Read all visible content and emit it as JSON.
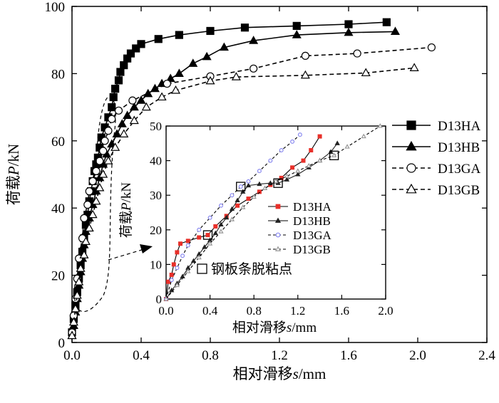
{
  "chart_data": [
    {
      "type": "line",
      "xlabel_prefix": "相对滑移",
      "xlabel_var": "s",
      "xlabel_unit": "/mm",
      "ylabel_prefix": "荷载",
      "ylabel_var": "P",
      "ylabel_unit": "/kN",
      "xlim": [
        0,
        2.4
      ],
      "ylim": [
        0,
        100
      ],
      "xticks": [
        "0.0",
        "0.4",
        "0.8",
        "1.2",
        "1.6",
        "2.0",
        "2.4"
      ],
      "yticks": [
        "0",
        "20",
        "40",
        "60",
        "80",
        "100"
      ],
      "legend_position": "right",
      "series": [
        {
          "name": "D13HA",
          "marker": "square-filled",
          "line": "solid",
          "points": [
            [
              0,
              3
            ],
            [
              0.01,
              7
            ],
            [
              0.02,
              11
            ],
            [
              0.03,
              15
            ],
            [
              0.04,
              19
            ],
            [
              0.05,
              23
            ],
            [
              0.06,
              27
            ],
            [
              0.07,
              31
            ],
            [
              0.08,
              35
            ],
            [
              0.09,
              38
            ],
            [
              0.1,
              42
            ],
            [
              0.11,
              45
            ],
            [
              0.12,
              48
            ],
            [
              0.13,
              51
            ],
            [
              0.14,
              53
            ],
            [
              0.15,
              55
            ],
            [
              0.16,
              58
            ],
            [
              0.17,
              61
            ],
            [
              0.19,
              64
            ],
            [
              0.21,
              67
            ],
            [
              0.23,
              70
            ],
            [
              0.24,
              73
            ],
            [
              0.25,
              75.5
            ],
            [
              0.27,
              78
            ],
            [
              0.28,
              80.5
            ],
            [
              0.3,
              82.5
            ],
            [
              0.32,
              84.5
            ],
            [
              0.34,
              86
            ],
            [
              0.37,
              87.5
            ],
            [
              0.4,
              88.8
            ],
            [
              0.5,
              90.3
            ],
            [
              0.62,
              91.5
            ],
            [
              0.8,
              92.7
            ],
            [
              1.0,
              93.7
            ],
            [
              1.3,
              94.2
            ],
            [
              1.6,
              94.7
            ],
            [
              1.82,
              95.3
            ]
          ]
        },
        {
          "name": "D13HB",
          "marker": "triangle-filled",
          "line": "solid",
          "points": [
            [
              0,
              2
            ],
            [
              0.01,
              5
            ],
            [
              0.02,
              9
            ],
            [
              0.03,
              13
            ],
            [
              0.04,
              17
            ],
            [
              0.05,
              21
            ],
            [
              0.06,
              25
            ],
            [
              0.07,
              29
            ],
            [
              0.08,
              33
            ],
            [
              0.1,
              37
            ],
            [
              0.12,
              41
            ],
            [
              0.14,
              45
            ],
            [
              0.16,
              49
            ],
            [
              0.18,
              53
            ],
            [
              0.2,
              56
            ],
            [
              0.23,
              59
            ],
            [
              0.26,
              62
            ],
            [
              0.29,
              65
            ],
            [
              0.32,
              67.5
            ],
            [
              0.36,
              70
            ],
            [
              0.4,
              72
            ],
            [
              0.44,
              74
            ],
            [
              0.48,
              75.5
            ],
            [
              0.52,
              77
            ],
            [
              0.57,
              78.5
            ],
            [
              0.62,
              80
            ],
            [
              0.7,
              83
            ],
            [
              0.78,
              85
            ],
            [
              0.88,
              87.8
            ],
            [
              1.05,
              89.8
            ],
            [
              1.3,
              91.5
            ],
            [
              1.6,
              92.2
            ],
            [
              1.87,
              92.5
            ]
          ]
        },
        {
          "name": "D13GA",
          "marker": "circle-open",
          "line": "dashed",
          "points": [
            [
              0,
              3
            ],
            [
              0.01,
              8
            ],
            [
              0.02,
              13
            ],
            [
              0.03,
              19
            ],
            [
              0.04,
              25
            ],
            [
              0.06,
              31
            ],
            [
              0.07,
              37
            ],
            [
              0.09,
              41
            ],
            [
              0.1,
              45
            ],
            [
              0.12,
              48
            ],
            [
              0.14,
              51
            ],
            [
              0.16,
              54
            ],
            [
              0.18,
              57
            ],
            [
              0.19,
              60
            ],
            [
              0.21,
              63
            ],
            [
              0.23,
              66.5
            ],
            [
              0.27,
              69
            ],
            [
              0.35,
              72
            ],
            [
              0.55,
              77
            ],
            [
              0.8,
              79.2
            ],
            [
              1.05,
              81.5
            ],
            [
              1.35,
              85.3
            ],
            [
              1.65,
              86
            ],
            [
              2.08,
              87.8
            ]
          ]
        },
        {
          "name": "D13GB",
          "marker": "triangle-open",
          "line": "dashed",
          "points": [
            [
              0,
              2
            ],
            [
              0.01,
              6
            ],
            [
              0.02,
              10
            ],
            [
              0.03,
              14
            ],
            [
              0.04,
              18
            ],
            [
              0.05,
              22
            ],
            [
              0.07,
              26
            ],
            [
              0.08,
              30
            ],
            [
              0.1,
              34
            ],
            [
              0.12,
              38
            ],
            [
              0.14,
              42
            ],
            [
              0.16,
              46
            ],
            [
              0.18,
              50
            ],
            [
              0.21,
              54
            ],
            [
              0.25,
              58
            ],
            [
              0.3,
              62
            ],
            [
              0.36,
              66
            ],
            [
              0.43,
              70
            ],
            [
              0.52,
              73
            ],
            [
              0.6,
              75
            ],
            [
              0.8,
              77.8
            ],
            [
              0.95,
              79
            ],
            [
              1.35,
              79.5
            ],
            [
              1.7,
              80.2
            ],
            [
              1.98,
              81.7
            ]
          ]
        }
      ]
    },
    {
      "type": "line",
      "inset": true,
      "xlabel_prefix": "相对滑移",
      "xlabel_var": "s",
      "xlabel_unit": "/mm",
      "ylabel_prefix": "荷载",
      "ylabel_var": "P",
      "ylabel_unit": "/kN",
      "xlim": [
        0,
        2.0
      ],
      "ylim": [
        0,
        50
      ],
      "xticks": [
        "0.0",
        "0.4",
        "0.8",
        "1.2",
        "1.6",
        "2.0"
      ],
      "yticks": [
        "0",
        "10",
        "20",
        "30",
        "40",
        "50"
      ],
      "annotation_label": "钢板条脱粘点",
      "legend_position": "center-right",
      "debond_points": [
        [
          0.38,
          18.5
        ],
        [
          0.68,
          32.5
        ],
        [
          1.02,
          33.5
        ],
        [
          1.53,
          41.5
        ]
      ],
      "series": [
        {
          "name": "D13HA",
          "color": "#e8302a",
          "marker": "square-small",
          "line": "solid",
          "points": [
            [
              0,
              0
            ],
            [
              0.02,
              5
            ],
            [
              0.05,
              7
            ],
            [
              0.07,
              10
            ],
            [
              0.1,
              13.5
            ],
            [
              0.13,
              16
            ],
            [
              0.2,
              16.8
            ],
            [
              0.3,
              17.8
            ],
            [
              0.38,
              18.5
            ],
            [
              0.45,
              21
            ],
            [
              0.55,
              24
            ],
            [
              0.65,
              27
            ],
            [
              0.75,
              29
            ],
            [
              0.85,
              31
            ],
            [
              0.95,
              33
            ],
            [
              1.05,
              35
            ],
            [
              1.15,
              38
            ],
            [
              1.25,
              40
            ],
            [
              1.32,
              43
            ],
            [
              1.4,
              47
            ]
          ]
        },
        {
          "name": "D13HB",
          "color": "#222222",
          "marker": "triangle-small",
          "line": "solid",
          "points": [
            [
              0,
              0
            ],
            [
              0.05,
              2.5
            ],
            [
              0.1,
              4.5
            ],
            [
              0.15,
              6.5
            ],
            [
              0.2,
              9
            ],
            [
              0.25,
              11
            ],
            [
              0.3,
              13
            ],
            [
              0.35,
              15
            ],
            [
              0.4,
              17
            ],
            [
              0.45,
              19
            ],
            [
              0.5,
              21.5
            ],
            [
              0.55,
              23.5
            ],
            [
              0.6,
              26
            ],
            [
              0.65,
              28.5
            ],
            [
              0.7,
              31
            ],
            [
              0.75,
              32.8
            ],
            [
              0.85,
              33.2
            ],
            [
              0.95,
              33.5
            ],
            [
              1.02,
              33.5
            ],
            [
              1.1,
              34.5
            ],
            [
              1.2,
              36
            ],
            [
              1.3,
              38
            ],
            [
              1.4,
              40
            ],
            [
              1.5,
              42.5
            ],
            [
              1.56,
              45
            ]
          ]
        },
        {
          "name": "D13GA",
          "color": "#8a8af0",
          "marker": "circle-small-open",
          "line": "dashed",
          "points": [
            [
              0,
              0
            ],
            [
              0.05,
              5.5
            ],
            [
              0.1,
              9
            ],
            [
              0.15,
              12.5
            ],
            [
              0.2,
              15.5
            ],
            [
              0.3,
              20
            ],
            [
              0.4,
              23.5
            ],
            [
              0.5,
              27
            ],
            [
              0.6,
              30
            ],
            [
              0.68,
              32.5
            ],
            [
              0.75,
              34
            ],
            [
              0.85,
              37
            ],
            [
              0.95,
              40
            ],
            [
              1.05,
              43
            ],
            [
              1.15,
              45.5
            ],
            [
              1.22,
              47.5
            ]
          ]
        },
        {
          "name": "D13GB",
          "color": "#999999",
          "marker": "triangle-small-open",
          "line": "dashed",
          "points": [
            [
              0,
              0
            ],
            [
              0.1,
              4
            ],
            [
              0.2,
              8
            ],
            [
              0.3,
              12
            ],
            [
              0.4,
              16
            ],
            [
              0.5,
              19.5
            ],
            [
              0.6,
              23
            ],
            [
              0.7,
              26.5
            ],
            [
              0.8,
              29.5
            ],
            [
              0.9,
              32
            ],
            [
              1.0,
              34
            ],
            [
              1.1,
              35.5
            ],
            [
              1.2,
              37
            ],
            [
              1.3,
              38.5
            ],
            [
              1.4,
              40
            ],
            [
              1.53,
              41.5
            ],
            [
              1.65,
              44
            ],
            [
              1.8,
              47
            ],
            [
              1.95,
              50
            ]
          ]
        }
      ]
    }
  ]
}
